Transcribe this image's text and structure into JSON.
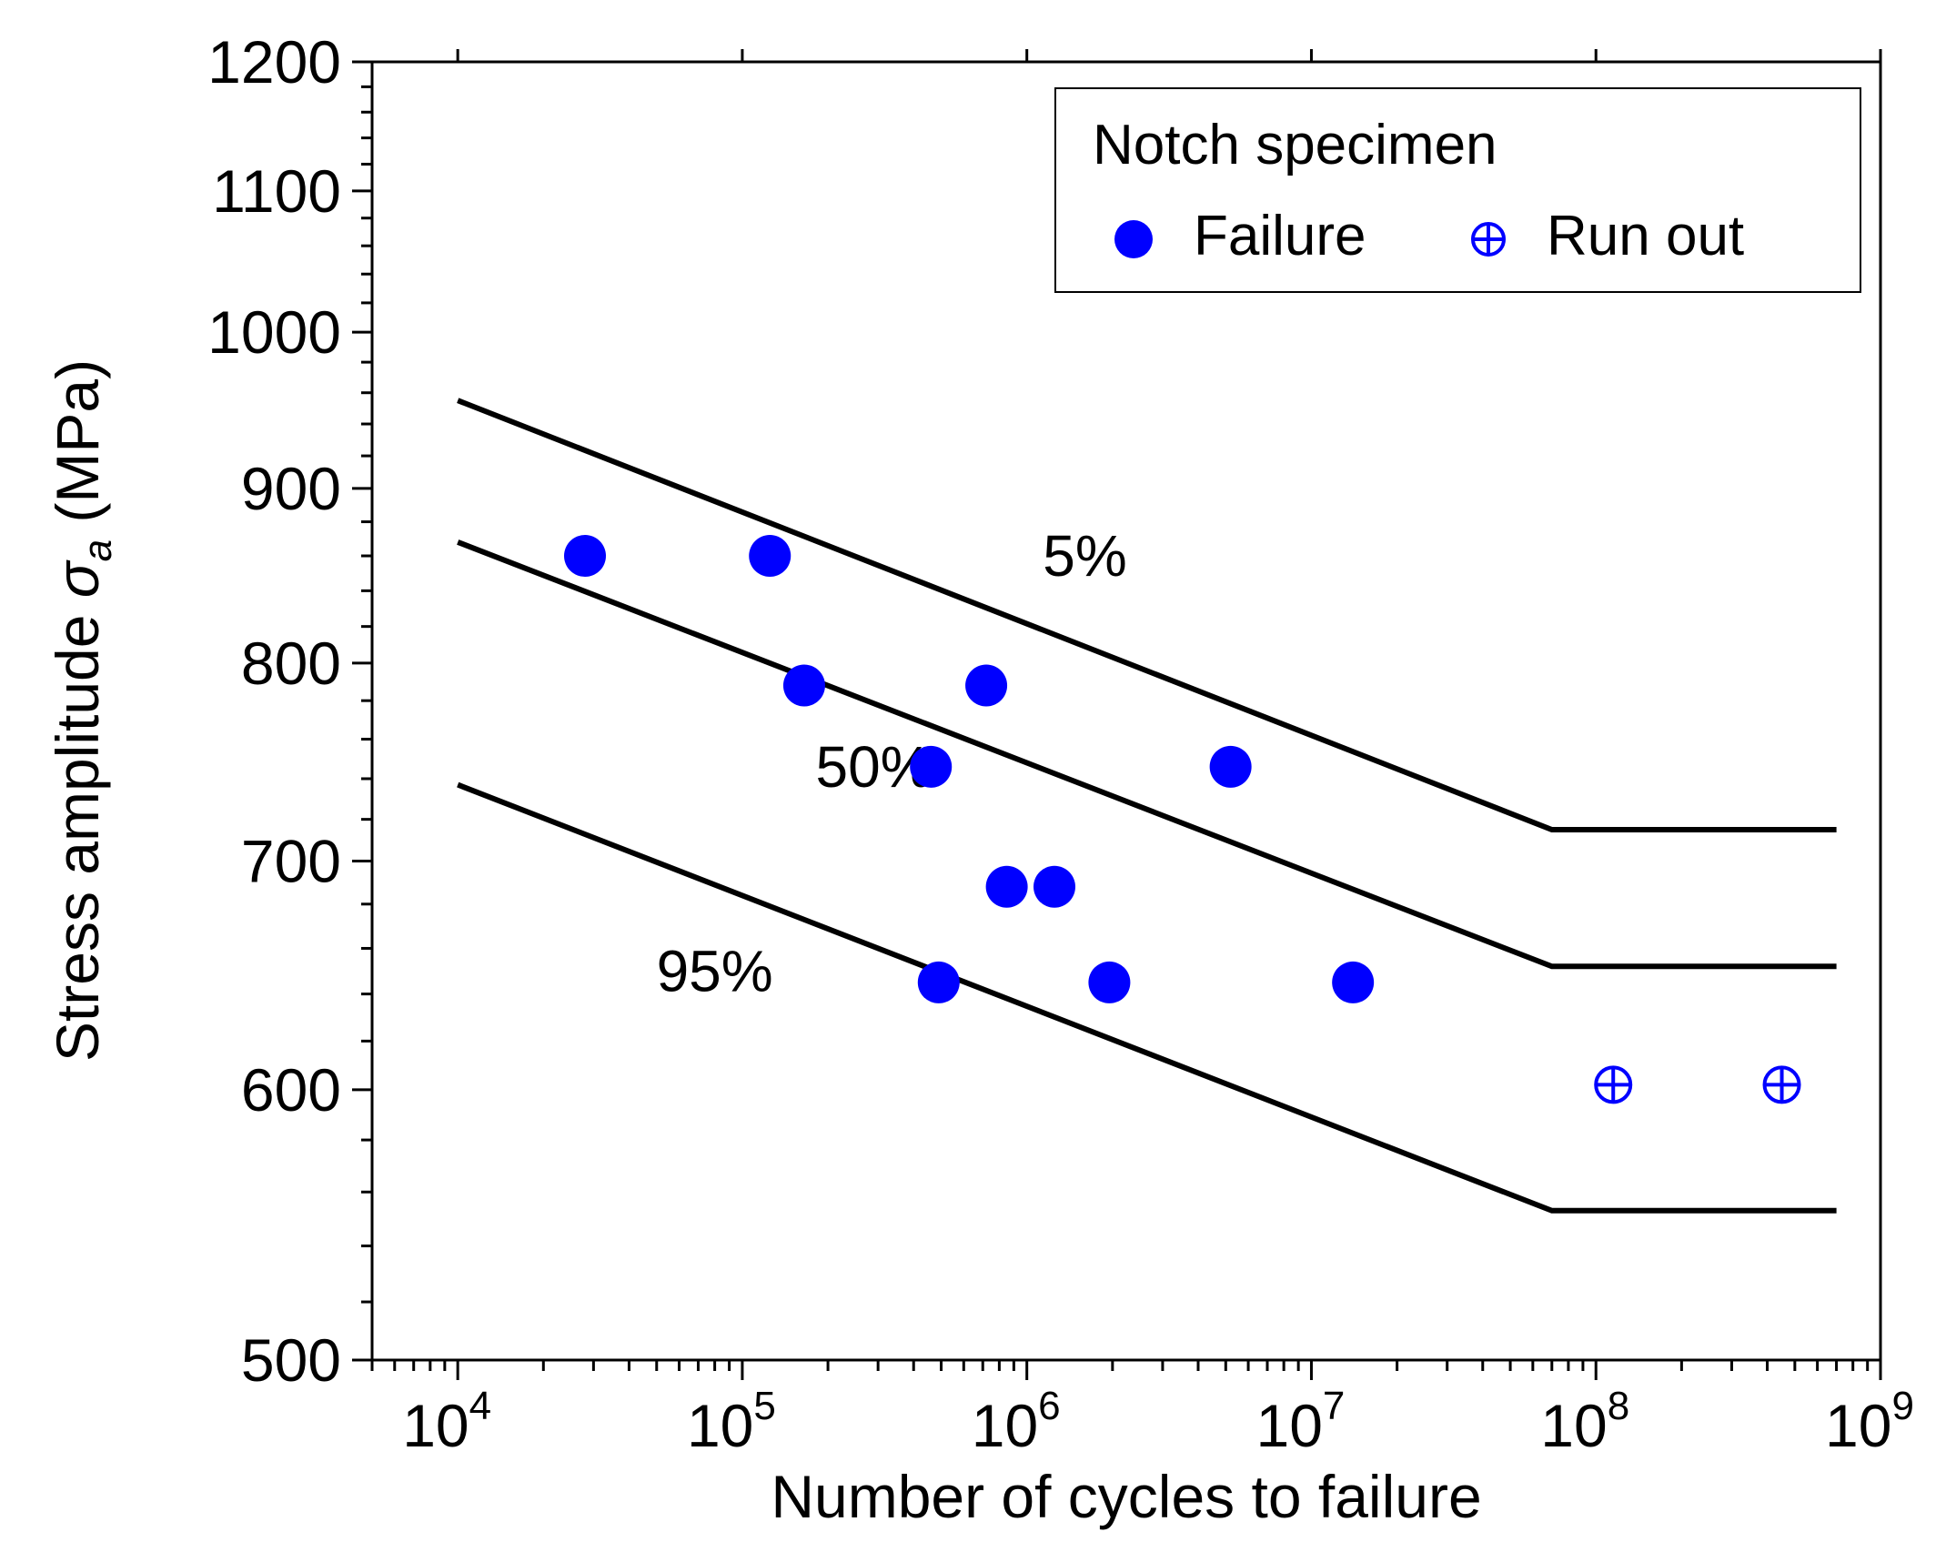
{
  "chart_data": {
    "type": "scatter",
    "xscale": "log",
    "yscale": "log",
    "xlim": [
      5000,
      1000000000
    ],
    "ylim": [
      500,
      1200
    ],
    "xlabel": "Number of cycles to failure",
    "ylabel": "Stress amplitude σ_a (MPa)",
    "ylabel_parts": {
      "prefix": "Stress amplitude ",
      "symbol": "σ",
      "subscript": "a",
      "suffix": " (MPa)"
    },
    "x_ticks": [
      {
        "value": 10000,
        "base": "10",
        "exp": "4"
      },
      {
        "value": 100000,
        "base": "10",
        "exp": "5"
      },
      {
        "value": 1000000,
        "base": "10",
        "exp": "6"
      },
      {
        "value": 10000000,
        "base": "10",
        "exp": "7"
      },
      {
        "value": 100000000,
        "base": "10",
        "exp": "8"
      },
      {
        "value": 1000000000,
        "base": "10",
        "exp": "9"
      }
    ],
    "y_ticks": [
      {
        "value": 500,
        "label": "500"
      },
      {
        "value": 600,
        "label": "600"
      },
      {
        "value": 700,
        "label": "700"
      },
      {
        "value": 800,
        "label": "800"
      },
      {
        "value": 900,
        "label": "900"
      },
      {
        "value": 1000,
        "label": "1000"
      },
      {
        "value": 1100,
        "label": "1100"
      },
      {
        "value": 1200,
        "label": "1200"
      }
    ],
    "legend": {
      "title": "Notch specimen",
      "position": "top-right",
      "entries": [
        {
          "label": "Failure",
          "marker": "filled-circle"
        },
        {
          "label": "Run out",
          "marker": "circle-plus"
        }
      ]
    },
    "series": [
      {
        "name": "Failure",
        "marker": "filled-circle",
        "color": "#0000ff",
        "points": [
          {
            "x": 28000,
            "y": 860
          },
          {
            "x": 125000,
            "y": 860
          },
          {
            "x": 165000,
            "y": 788
          },
          {
            "x": 720000,
            "y": 788
          },
          {
            "x": 460000,
            "y": 746
          },
          {
            "x": 5200000,
            "y": 746
          },
          {
            "x": 850000,
            "y": 688
          },
          {
            "x": 1250000,
            "y": 688
          },
          {
            "x": 490000,
            "y": 645
          },
          {
            "x": 1950000,
            "y": 645
          },
          {
            "x": 14000000,
            "y": 645
          }
        ]
      },
      {
        "name": "Run out",
        "marker": "circle-plus",
        "color": "#0000ff",
        "points": [
          {
            "x": 115000000,
            "y": 602
          },
          {
            "x": 450000000,
            "y": 602
          }
        ]
      }
    ],
    "curves": [
      {
        "name": "5%",
        "label": "5%",
        "label_at": {
          "x": 1600000,
          "y": 860
        },
        "color": "#000000",
        "points": [
          {
            "x": 10000,
            "y": 955
          },
          {
            "x": 70000000,
            "y": 715
          },
          {
            "x": 700000000,
            "y": 715
          }
        ]
      },
      {
        "name": "50%",
        "label": "50%",
        "label_at": {
          "x": 290000,
          "y": 746
        },
        "color": "#000000",
        "points": [
          {
            "x": 10000,
            "y": 868
          },
          {
            "x": 70000000,
            "y": 652
          },
          {
            "x": 700000000,
            "y": 652
          }
        ]
      },
      {
        "name": "95%",
        "label": "95%",
        "label_at": {
          "x": 80000,
          "y": 650
        },
        "color": "#000000",
        "points": [
          {
            "x": 10000,
            "y": 737
          },
          {
            "x": 70000000,
            "y": 553
          },
          {
            "x": 700000000,
            "y": 553
          }
        ]
      }
    ],
    "grid": false
  }
}
